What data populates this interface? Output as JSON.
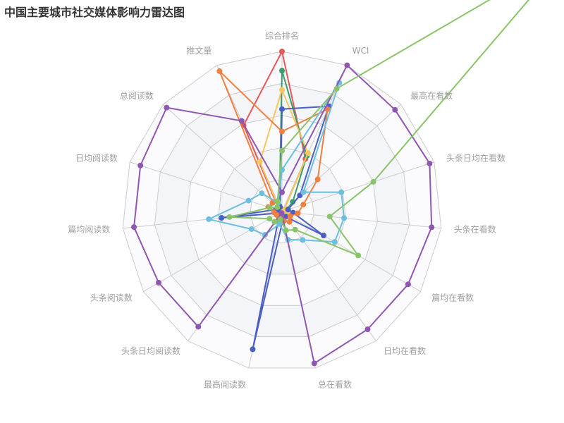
{
  "title": "中国主要城市社交媒体影响力雷达图",
  "colors": {
    "grid_line": "#cccccc",
    "band_even": "#f4f5f9",
    "band_odd": "#fbfbfd",
    "axis_label": "#a0a0a0"
  },
  "chart_data": {
    "type": "radar",
    "title": "中国主要城市社交媒体影响力雷达图",
    "grid": true,
    "legend": "none",
    "indicators": [
      {
        "name": "综合排名",
        "max": 100
      },
      {
        "name": "WCI",
        "max": 100
      },
      {
        "name": "最高在看数",
        "max": 100
      },
      {
        "name": "头条日均在看数",
        "max": 100
      },
      {
        "name": "头条在看数",
        "max": 100
      },
      {
        "name": "篇均在看数",
        "max": 100
      },
      {
        "name": "日均在看数",
        "max": 100
      },
      {
        "name": "总在看数",
        "max": 100
      },
      {
        "name": "最高阅读数",
        "max": 100
      },
      {
        "name": "头条日均阅读数",
        "max": 100
      },
      {
        "name": "头条阅读数",
        "max": 100
      },
      {
        "name": "篇均阅读数",
        "max": 100
      },
      {
        "name": "日均阅读数",
        "max": 100
      },
      {
        "name": "总阅读数",
        "max": 100
      },
      {
        "name": "推文量",
        "max": 100
      }
    ],
    "series": [
      {
        "color": "#e8575a",
        "values": [
          100,
          36,
          2,
          2,
          2,
          2,
          2,
          4,
          3,
          2,
          2,
          4,
          4,
          3,
          59
        ]
      },
      {
        "color": "#3a9e6b",
        "values": [
          88,
          38,
          9,
          3,
          3,
          3,
          3,
          4,
          2,
          2,
          3,
          5,
          3,
          2,
          4
        ]
      },
      {
        "color": "#f6c75d",
        "values": [
          76,
          40,
          2,
          3,
          4,
          2,
          3,
          3,
          3,
          2,
          2,
          4,
          3,
          2,
          34
        ]
      },
      {
        "color": "#4a5fc4",
        "values": [
          64,
          72,
          15,
          4,
          7,
          30,
          4,
          4,
          88,
          3,
          2,
          38,
          4,
          3,
          3
        ]
      },
      {
        "color": "#f17f42",
        "values": [
          50,
          70,
          30,
          14,
          10,
          6,
          8,
          6,
          3,
          4,
          4,
          5,
          9,
          8,
          96
        ]
      },
      {
        "color": "#6bbfdf",
        "values": [
          26,
          88,
          18,
          39,
          39,
          38,
          22,
          18,
          8,
          18,
          22,
          46,
          22,
          17,
          6
        ]
      },
      {
        "color": "#9057b2",
        "values": [
          12,
          100,
          95,
          97,
          94,
          91,
          91,
          97,
          1,
          89,
          89,
          93,
          93,
          97,
          62
        ]
      },
      {
        "color": "#8ac46a",
        "values": [
          38,
          84,
          240,
          60,
          30,
          55,
          14,
          12,
          5,
          8,
          9,
          33,
          8,
          4,
          7
        ]
      }
    ]
  }
}
